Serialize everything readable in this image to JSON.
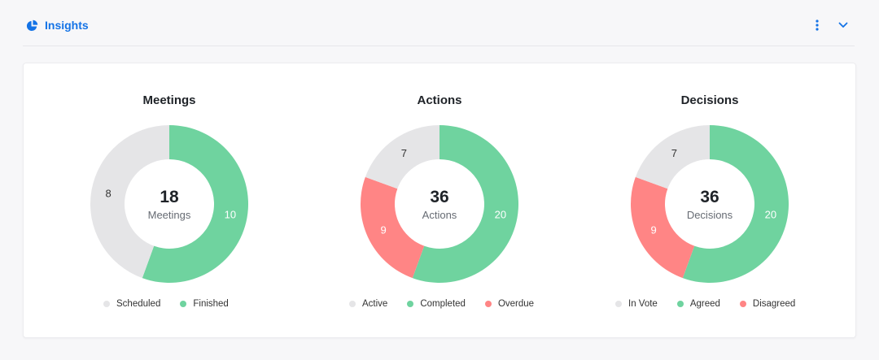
{
  "header": {
    "title": "Insights",
    "title_icon": "pie-chart-icon",
    "menu_icon": "more-vertical-icon",
    "collapse_icon": "chevron-down-icon",
    "accent_color": "#1473e6"
  },
  "charts": [
    {
      "title": "Meetings",
      "total": "18",
      "center_label": "Meetings",
      "legend": [
        "Scheduled",
        "Finished"
      ]
    },
    {
      "title": "Actions",
      "total": "36",
      "center_label": "Actions",
      "legend": [
        "Active",
        "Completed",
        "Overdue"
      ]
    },
    {
      "title": "Decisions",
      "total": "36",
      "center_label": "Decisions",
      "legend": [
        "In Vote",
        "Agreed",
        "Disagreed"
      ]
    }
  ],
  "chart_data": [
    {
      "type": "pie",
      "title": "Meetings",
      "categories": [
        "Finished",
        "Scheduled"
      ],
      "values": [
        10,
        8
      ],
      "colors": [
        "#6fd39f",
        "#e5e5e7"
      ],
      "legend_placement": "bottom"
    },
    {
      "type": "pie",
      "title": "Actions",
      "categories": [
        "Completed",
        "Overdue",
        "Active"
      ],
      "values": [
        20,
        9,
        7
      ],
      "colors": [
        "#6fd39f",
        "#ff8585",
        "#e5e5e7"
      ],
      "legend_placement": "bottom"
    },
    {
      "type": "pie",
      "title": "Decisions",
      "categories": [
        "Agreed",
        "Disagreed",
        "In Vote"
      ],
      "values": [
        20,
        9,
        7
      ],
      "colors": [
        "#6fd39f",
        "#ff8585",
        "#e5e5e7"
      ],
      "legend_placement": "bottom"
    }
  ]
}
